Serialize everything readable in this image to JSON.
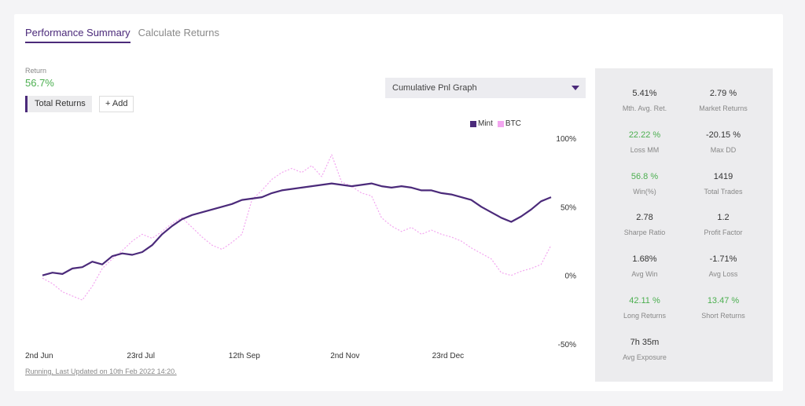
{
  "tabs": [
    {
      "label": "Performance Summary",
      "active": true
    },
    {
      "label": "Calculate Returns",
      "active": false
    }
  ],
  "return_label": "Return",
  "return_value": "56.7%",
  "buttons": {
    "total_returns": "Total Returns",
    "add": "+ Add"
  },
  "dropdown": {
    "selected": "Cumulative Pnl Graph"
  },
  "legend": [
    {
      "name": "Mint",
      "color": "#4b2a7a"
    },
    {
      "name": "BTC",
      "color": "#f3a6f0"
    }
  ],
  "footer": "Running, Last Updated on 10th Feb 2022 14:20.",
  "stats": [
    {
      "value": "5.41%",
      "label": "Mth. Avg. Ret.",
      "green": false
    },
    {
      "value": "2.79 %",
      "label": "Market Returns",
      "green": false
    },
    {
      "value": "22.22 %",
      "label": "Loss MM",
      "green": true
    },
    {
      "value": "-20.15 %",
      "label": "Max DD",
      "green": false
    },
    {
      "value": "56.8 %",
      "label": "Win(%)",
      "green": true
    },
    {
      "value": "1419",
      "label": "Total Trades",
      "green": false
    },
    {
      "value": "2.78",
      "label": "Sharpe Ratio",
      "green": false
    },
    {
      "value": "1.2",
      "label": "Profit Factor",
      "green": false
    },
    {
      "value": "1.68%",
      "label": "Avg Win",
      "green": false
    },
    {
      "value": "-1.71%",
      "label": "Avg Loss",
      "green": false
    },
    {
      "value": "42.11 %",
      "label": "Long Returns",
      "green": true
    },
    {
      "value": "13.47 %",
      "label": "Short Returns",
      "green": true
    },
    {
      "value": "7h 35m",
      "label": "Avg Exposure",
      "green": false
    }
  ],
  "chart_data": {
    "type": "line",
    "x_ticks": [
      "2nd Jun",
      "23rd Jul",
      "12th Sep",
      "2nd Nov",
      "23rd Dec"
    ],
    "x_tick_positions": [
      0,
      51,
      102,
      153,
      204
    ],
    "y_ticks": [
      "100%",
      "50%",
      "0%",
      "-50%"
    ],
    "y_tick_values": [
      100,
      50,
      0,
      -50
    ],
    "ylim": [
      -50,
      100
    ],
    "xlim": [
      0,
      255
    ],
    "grid": false,
    "legend_position": "top-right",
    "series": [
      {
        "name": "Mint",
        "color": "#4b2a7a",
        "x": [
          0,
          5,
          10,
          15,
          20,
          25,
          30,
          35,
          40,
          45,
          50,
          55,
          60,
          65,
          70,
          75,
          80,
          85,
          90,
          95,
          100,
          105,
          110,
          115,
          120,
          125,
          130,
          135,
          140,
          145,
          150,
          155,
          160,
          165,
          170,
          175,
          180,
          185,
          190,
          195,
          200,
          205,
          210,
          215,
          220,
          225,
          230,
          235,
          240,
          245,
          250,
          255
        ],
        "y": [
          0,
          2,
          1,
          5,
          6,
          10,
          8,
          14,
          16,
          15,
          17,
          22,
          30,
          36,
          41,
          44,
          46,
          48,
          50,
          52,
          55,
          56,
          57,
          60,
          62,
          63,
          64,
          65,
          66,
          67,
          66,
          65,
          66,
          67,
          65,
          64,
          65,
          64,
          62,
          62,
          60,
          59,
          57,
          55,
          50,
          46,
          42,
          39,
          43,
          48,
          54,
          57
        ]
      },
      {
        "name": "BTC",
        "color": "#f3a6f0",
        "x": [
          0,
          5,
          10,
          15,
          20,
          25,
          30,
          35,
          40,
          45,
          50,
          55,
          60,
          65,
          70,
          75,
          80,
          85,
          90,
          95,
          100,
          105,
          110,
          115,
          120,
          125,
          130,
          135,
          140,
          145,
          150,
          155,
          160,
          165,
          170,
          175,
          180,
          185,
          190,
          195,
          200,
          205,
          210,
          215,
          220,
          225,
          230,
          235,
          240,
          245,
          250,
          255
        ],
        "y": [
          -2,
          -6,
          -12,
          -15,
          -18,
          -8,
          5,
          12,
          18,
          25,
          30,
          27,
          32,
          38,
          42,
          35,
          28,
          22,
          19,
          24,
          30,
          55,
          62,
          70,
          75,
          78,
          75,
          80,
          72,
          88,
          68,
          65,
          60,
          58,
          42,
          36,
          32,
          35,
          30,
          33,
          30,
          28,
          25,
          20,
          16,
          12,
          2,
          0,
          3,
          5,
          8,
          22
        ]
      }
    ]
  }
}
